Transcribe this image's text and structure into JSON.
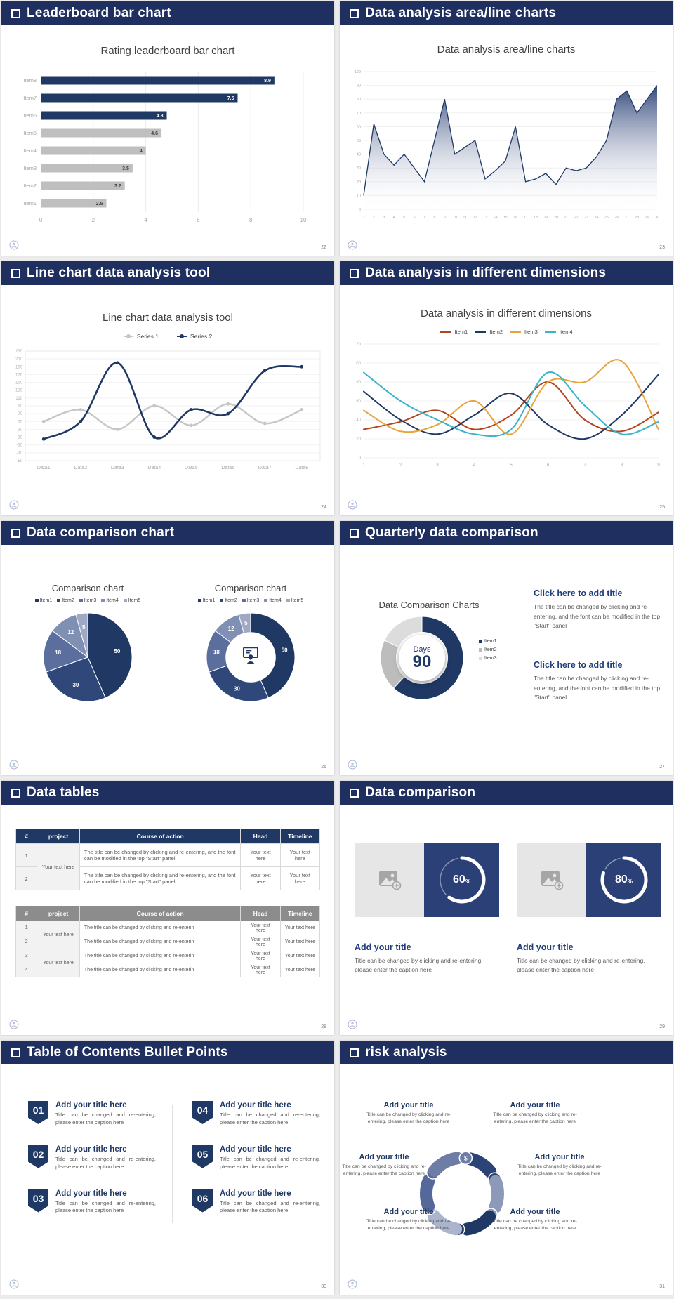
{
  "theme": {
    "header_bg": "#1f3060",
    "navy": "#1f3864",
    "gray_bar": "#bfbfbf",
    "accent_title": "#1f3d7a"
  },
  "slides": {
    "s1": {
      "header": "Leaderboard bar chart",
      "page": "22"
    },
    "s2": {
      "header": "Data analysis area/line charts",
      "page": "23"
    },
    "s3": {
      "header": "Line chart data analysis tool",
      "page": "24"
    },
    "s4": {
      "header": "Data analysis in different dimensions",
      "page": "25"
    },
    "s5": {
      "header": "Data comparison chart",
      "page": "26"
    },
    "s6": {
      "header": "Quarterly data comparison",
      "page": "27",
      "title": "Data Comparison Charts",
      "center_label": "Days",
      "center_value": "90",
      "blocks": [
        {
          "title": "Click here to add title",
          "body": "The title can be changed by clicking and re-entering, and the font can be modified in the top \"Start\" panel"
        },
        {
          "title": "Click here to add title",
          "body": "The title can be changed by clicking and re-entering, and the font can be modified in the top \"Start\" panel"
        }
      ]
    },
    "s7": {
      "header": "Data tables",
      "page": "28",
      "columns": [
        "#",
        "project",
        "Course of action",
        "Head",
        "Timeline"
      ],
      "table1": {
        "merged_project": "Your text here",
        "rows": [
          {
            "num": "1",
            "course": "The title can be changed by clicking and re-entering, and the font can be modified in the top \"Start\" panel",
            "head": "Your text here",
            "timeline": "Your text here"
          },
          {
            "num": "2",
            "course": "The title can be changed by clicking and re-entering, and the font can be modified in the top \"Start\" panel",
            "head": "Your text here",
            "timeline": "Your text here"
          }
        ]
      },
      "table2": {
        "merged_a": "Your text here",
        "merged_b": "Your text here",
        "rows": [
          {
            "num": "1",
            "course": "The title can be changed by clicking and re-enterin",
            "head": "Your text here",
            "timeline": "Your text here"
          },
          {
            "num": "2",
            "course": "The title can be changed by clicking and re-enterin",
            "head": "Your text here",
            "timeline": "Your text here"
          },
          {
            "num": "3",
            "course": "The title can be changed by clicking and re-enterin",
            "head": "Your text here",
            "timeline": "Your text here"
          },
          {
            "num": "4",
            "course": "The title can be changed by clicking and re-enterin",
            "head": "Your text here",
            "timeline": "Your text here"
          }
        ]
      }
    },
    "s8": {
      "header": "Data comparison",
      "page": "29",
      "cards": [
        {
          "value": "60",
          "unit": "%",
          "title": "Add your title",
          "caption": "Title can be changed by clicking and re-entering, please enter the caption here"
        },
        {
          "value": "80",
          "unit": "%",
          "title": "Add your title",
          "caption": "Title can be changed by clicking and re-entering, please enter the caption here"
        }
      ]
    },
    "s9": {
      "header": "Table of Contents Bullet Points",
      "page": "30",
      "items": [
        {
          "num": "01",
          "title": "Add your title here",
          "caption": "Title can be changed and re-entering, please enter the caption here"
        },
        {
          "num": "02",
          "title": "Add your title here",
          "caption": "Title can be changed and re-entering, please enter the caption here"
        },
        {
          "num": "03",
          "title": "Add your title here",
          "caption": "Title can be changed and re-entering, please enter the caption here"
        },
        {
          "num": "04",
          "title": "Add your title here",
          "caption": "Title can be changed and re-entering, please enter the caption here"
        },
        {
          "num": "05",
          "title": "Add your title here",
          "caption": "Title can be changed and re-entering, please enter the caption here"
        },
        {
          "num": "06",
          "title": "Add your title here",
          "caption": "Title can be changed and re-entering, please enter the caption here"
        }
      ]
    },
    "s10": {
      "header": "risk analysis",
      "page": "31",
      "blocks": [
        {
          "title": "Add your title",
          "caption": "Title can be changed by clicking and re-entering, please enter the caption here"
        },
        {
          "title": "Add your title",
          "caption": "Title can be changed by clicking and re-entering, please enter the caption here"
        },
        {
          "title": "Add your title",
          "caption": "Title can be changed by clicking and re-entering, please enter the caption here"
        },
        {
          "title": "Add your title",
          "caption": "Title can be changed by clicking and re-entering, please enter the caption here"
        },
        {
          "title": "Add your title",
          "caption": "Title can be changed by clicking and re-entering, please enter the caption here"
        },
        {
          "title": "Add your title",
          "caption": "Title can be changed by clicking and re-entering, please enter the caption here"
        }
      ]
    }
  },
  "chart_data": [
    {
      "id": "leaderboard",
      "type": "barh",
      "title": "Rating leaderboard bar chart",
      "categories": [
        "Item1",
        "Item2",
        "Item3",
        "Item4",
        "Item5",
        "Item6",
        "Item7",
        "Item8"
      ],
      "values": [
        2.5,
        3.2,
        3.5,
        4,
        4.6,
        4.8,
        7.5,
        8.9
      ],
      "colors": [
        "#bfbfbf",
        "#bfbfbf",
        "#bfbfbf",
        "#bfbfbf",
        "#bfbfbf",
        "#1f3864",
        "#1f3864",
        "#1f3864"
      ],
      "xlim": [
        0,
        10
      ],
      "xticks": [
        0,
        2,
        4,
        6,
        8,
        10
      ]
    },
    {
      "id": "area",
      "type": "area",
      "title": "Data analysis area/line charts",
      "x_start": 1,
      "values": [
        10,
        62,
        40,
        32,
        40,
        30,
        20,
        50,
        80,
        40,
        45,
        50,
        22,
        28,
        35,
        60,
        20,
        22,
        26,
        18,
        30,
        28,
        30,
        38,
        50,
        80,
        86,
        70,
        80,
        90
      ],
      "ylim": [
        0,
        100
      ],
      "ytick_step": 10,
      "line_color": "#1f3864"
    },
    {
      "id": "two-series-line",
      "type": "line",
      "title": "Line chart data analysis tool",
      "axis": "cat",
      "border": true,
      "categories": [
        "Data1",
        "Data2",
        "Data3",
        "Data4",
        "Data5",
        "Data6",
        "Data7",
        "Data8"
      ],
      "ylim": [
        -50,
        230
      ],
      "ytick_step": 20,
      "cat_font": 7,
      "series": [
        {
          "name": "Series 1",
          "color": "#c6c6c6",
          "width": 2.4,
          "markers": true,
          "values": [
            50,
            80,
            30,
            90,
            40,
            95,
            45,
            80
          ]
        },
        {
          "name": "Series 2",
          "color": "#1f3864",
          "width": 2.6,
          "markers": true,
          "values": [
            5,
            50,
            200,
            10,
            80,
            70,
            180,
            190
          ]
        }
      ]
    },
    {
      "id": "four-series-line",
      "type": "line",
      "title": "Data analysis in different dimensions",
      "axis": "num",
      "border": false,
      "categories": [
        "1",
        "2",
        "3",
        "4",
        "5",
        "6",
        "7",
        "8",
        "9"
      ],
      "ylim": [
        0,
        120
      ],
      "ytick_step": 20,
      "cat_font": 6,
      "series": [
        {
          "name": "Item1",
          "color": "#b1451f",
          "width": 2,
          "markers": false,
          "values": [
            30,
            38,
            50,
            30,
            45,
            80,
            40,
            28,
            48
          ]
        },
        {
          "name": "Item2",
          "color": "#1f3864",
          "width": 2,
          "markers": false,
          "values": [
            70,
            40,
            25,
            45,
            68,
            35,
            20,
            45,
            88
          ]
        },
        {
          "name": "Item3",
          "color": "#e8a33d",
          "width": 2,
          "markers": false,
          "values": [
            50,
            28,
            35,
            60,
            25,
            80,
            80,
            102,
            30
          ]
        },
        {
          "name": "Item4",
          "color": "#3ab4c9",
          "width": 2,
          "markers": false,
          "values": [
            90,
            60,
            40,
            25,
            30,
            90,
            55,
            25,
            38
          ]
        }
      ]
    },
    {
      "id": "comparison-pie",
      "type": "pie",
      "title": "Comparison chart",
      "inner": 0,
      "show_labels": true,
      "labels": [
        "Item1",
        "Item2",
        "Item3",
        "Item4",
        "Item5"
      ],
      "values": [
        50,
        30,
        18,
        12,
        5
      ],
      "colors": [
        "#1f3864",
        "#2f4779",
        "#5b6e9e",
        "#8090b4",
        "#9fa9c4"
      ]
    },
    {
      "id": "comparison-donut",
      "type": "pie",
      "title": "Comparison chart",
      "inner": 0.56,
      "show_labels": true,
      "labels": [
        "Item1",
        "Item2",
        "Item3",
        "Item4",
        "Item5"
      ],
      "values": [
        50,
        30,
        18,
        12,
        5
      ],
      "colors": [
        "#1f3864",
        "#2f4779",
        "#5b6e9e",
        "#8090b4",
        "#9fa9c4"
      ]
    },
    {
      "id": "days-ring",
      "type": "pie",
      "inner": 0.62,
      "show_labels": false,
      "labels": [
        "Item1",
        "Item2",
        "Item3"
      ],
      "values": [
        62,
        20,
        18
      ],
      "colors": [
        "#1f3864",
        "#bdbdbd",
        "#dcdcdc"
      ]
    },
    {
      "id": "progress-60",
      "type": "progress",
      "value": 60
    },
    {
      "id": "progress-80",
      "type": "progress",
      "value": 80
    },
    {
      "id": "risk-pinwheel",
      "type": "pinwheel",
      "segments": [
        {
          "color": "#2c4377",
          "icon_name": "coins-icon",
          "glyph": "⛁"
        },
        {
          "color": "#8d99b8",
          "icon_name": "people-icon",
          "glyph": "☻"
        },
        {
          "color": "#1f3864",
          "icon_name": "pie-chart-icon",
          "glyph": "◔"
        },
        {
          "color": "#aab4cc",
          "icon_name": "building-icon",
          "glyph": "⌂"
        },
        {
          "color": "#55689a",
          "icon_name": "person-icon",
          "glyph": "☻"
        },
        {
          "color": "#6d7da6",
          "icon_name": "money-bag-icon",
          "glyph": "$"
        }
      ]
    }
  ]
}
